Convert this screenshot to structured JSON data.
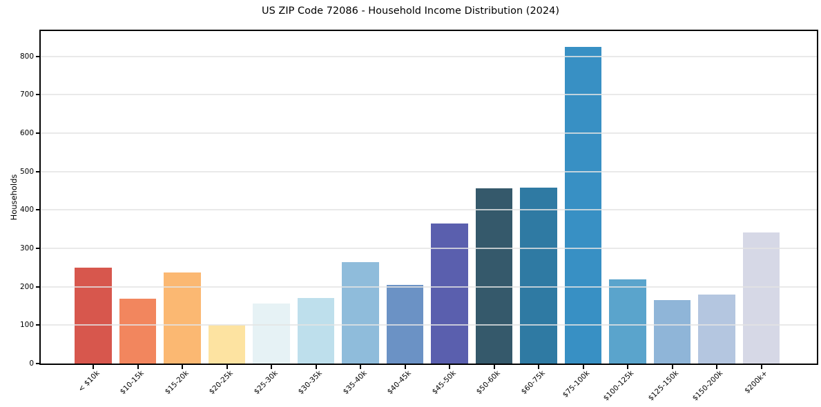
{
  "chart_data": {
    "type": "bar",
    "title": "US ZIP Code 72086 - Household Income Distribution (2024)",
    "xlabel": "",
    "ylabel": "Households",
    "categories": [
      "< $10k",
      "$10-15k",
      "$15-20k",
      "$20-25k",
      "$25-30k",
      "$30-35k",
      "$35-40k",
      "$40-45k",
      "$45-50k",
      "$50-60k",
      "$60-75k",
      "$75-100k",
      "$100-125k",
      "$125-150k",
      "$150-200k",
      "$200k+"
    ],
    "values": [
      250,
      169,
      237,
      101,
      156,
      171,
      264,
      205,
      364,
      456,
      458,
      825,
      220,
      166,
      179,
      341
    ],
    "bar_colors": [
      "#d7574d",
      "#f2865e",
      "#fbb872",
      "#fde3a1",
      "#e6f2f5",
      "#bedfec",
      "#8fbcdb",
      "#6b92c5",
      "#5a5fae",
      "#35596b",
      "#2f7aa3",
      "#3890c4",
      "#5aa4cc",
      "#8fb5d8",
      "#b4c6e0",
      "#d6d8e6"
    ],
    "y_ticks": [
      0,
      100,
      200,
      300,
      400,
      500,
      600,
      700,
      800
    ],
    "ylim": [
      0,
      866
    ],
    "grid": "horizontal",
    "legend_position": "none"
  },
  "style_colors": {
    "background": "#ffffff",
    "axis": "#000000",
    "gridline": "#e4e4e4",
    "text": "#000000"
  }
}
